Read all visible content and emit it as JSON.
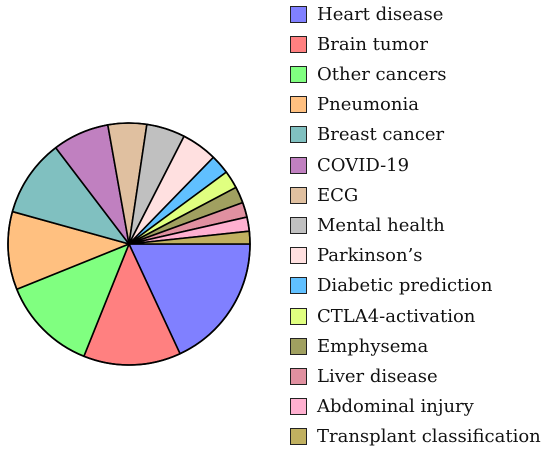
{
  "chart_data": {
    "type": "pie",
    "title": "",
    "start_angle_deg": 0,
    "direction": "clockwise",
    "legend_position": "right",
    "categories": [
      "Heart disease",
      "Brain tumor",
      "Other cancers",
      "Pneumonia",
      "Breast cancer",
      "COVID-19",
      "ECG",
      "Mental health",
      "Parkinson’s",
      "Diabetic prediction",
      "CTLA4-activation",
      "Emphysema",
      "Liver disease",
      "Abdominal injury",
      "Transplant classification"
    ],
    "values": [
      18.2,
      13.1,
      12.9,
      10.5,
      10.4,
      7.6,
      5.2,
      5.2,
      4.8,
      2.6,
      2.4,
      2.2,
      2.0,
      1.9,
      1.7
    ],
    "colors": [
      "#8080ff",
      "#ff8080",
      "#80ff80",
      "#ffc080",
      "#80c0c0",
      "#c080c0",
      "#e0c0a0",
      "#c0c0c0",
      "#ffe0e0",
      "#60c0ff",
      "#e0ff80",
      "#a0a060",
      "#e090a0",
      "#ffb0d0",
      "#c0b060"
    ]
  }
}
